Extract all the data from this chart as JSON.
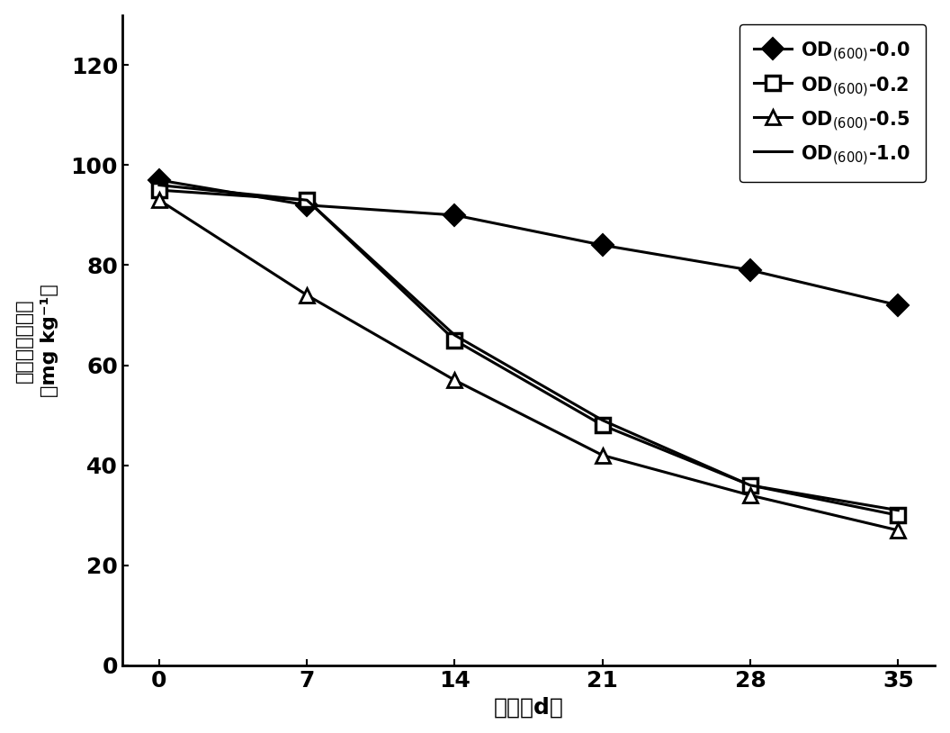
{
  "x": [
    0,
    7,
    14,
    21,
    28,
    35
  ],
  "series": {
    "OD00": [
      97,
      92,
      90,
      84,
      79,
      72
    ],
    "OD02": [
      95,
      93,
      65,
      48,
      36,
      30
    ],
    "OD05": [
      93,
      74,
      57,
      42,
      34,
      27
    ],
    "OD10": [
      96,
      93,
      66,
      49,
      36,
      31
    ]
  },
  "xlabel": "时间（d）",
  "ylabel_line1": "总多环芳烃含量",
  "ylabel_line2": "（mg kg⁻¹）",
  "ylim": [
    0,
    130
  ],
  "yticks": [
    0,
    20,
    40,
    60,
    80,
    100,
    120
  ],
  "xticks": [
    0,
    7,
    14,
    21,
    28,
    35
  ],
  "legend_labels": [
    "OD$_{(600)}$-0.0",
    "OD$_{(600)}$-0.2",
    "OD$_{(600)}$-0.5",
    "OD$_{(600)}$-1.0"
  ],
  "line_color": "#000000",
  "background_color": "#ffffff",
  "axis_fontsize": 18,
  "tick_fontsize": 18,
  "legend_fontsize": 15
}
